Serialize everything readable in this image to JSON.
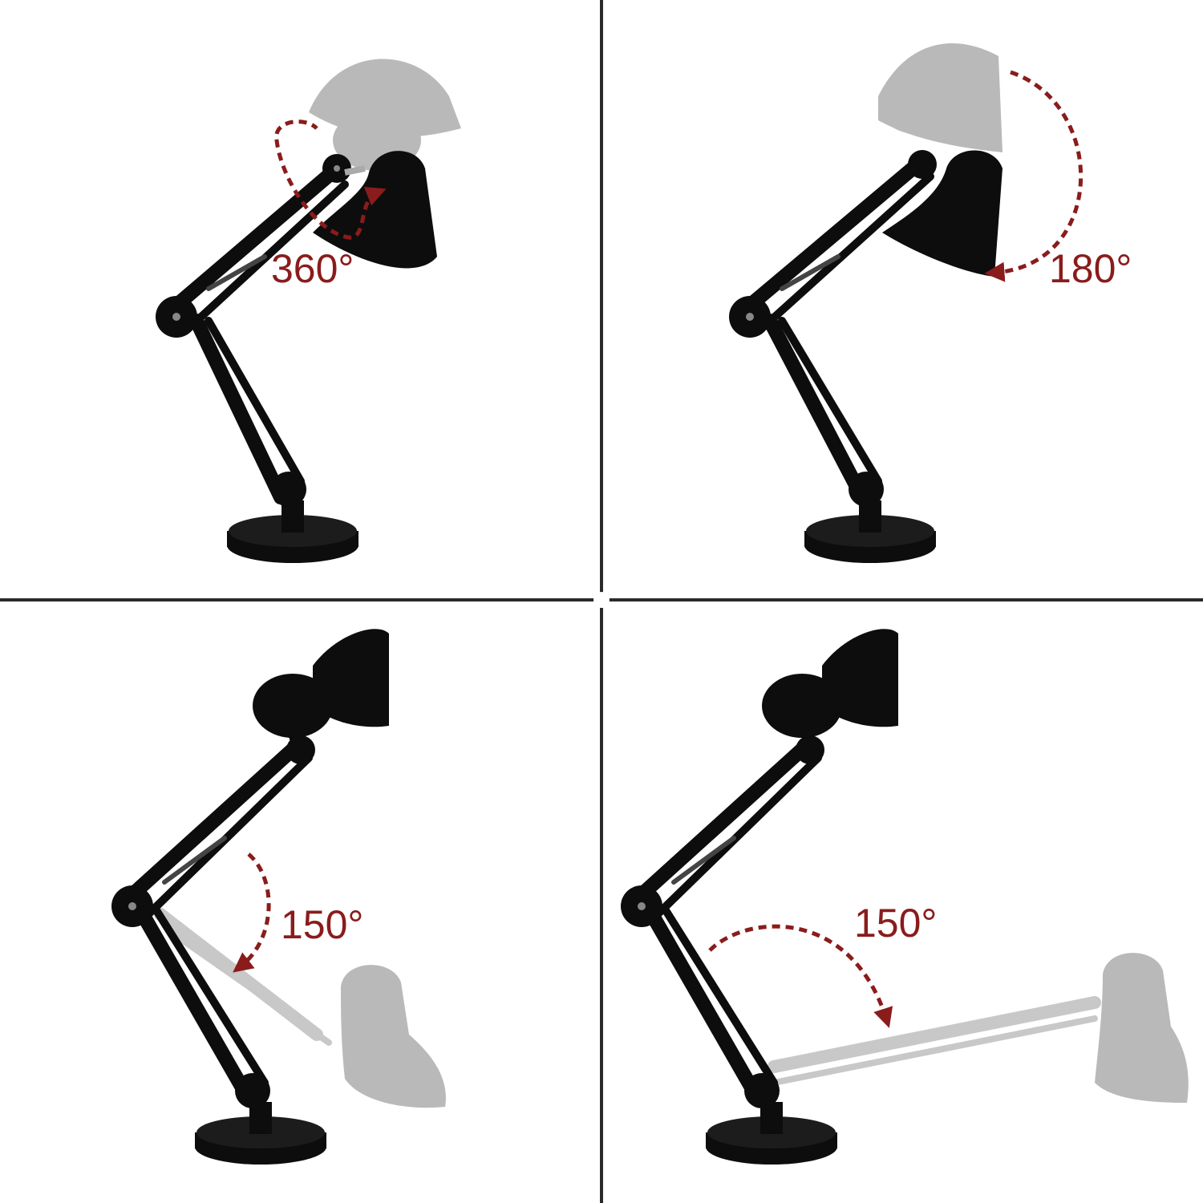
{
  "colors": {
    "background": "#ffffff",
    "divider": "#2a2a2a",
    "lamp": "#0d0d0d",
    "ghost": "#b9b9b9",
    "accent": "#8a1c1c"
  },
  "panels": [
    {
      "id": "top-left",
      "angle_label": "360°",
      "motion": "shade-rotation"
    },
    {
      "id": "top-right",
      "angle_label": "180°",
      "motion": "shade-tilt"
    },
    {
      "id": "bottom-left",
      "angle_label": "150°",
      "motion": "arm-lower"
    },
    {
      "id": "bottom-right",
      "angle_label": "150°",
      "motion": "arm-extend"
    }
  ]
}
